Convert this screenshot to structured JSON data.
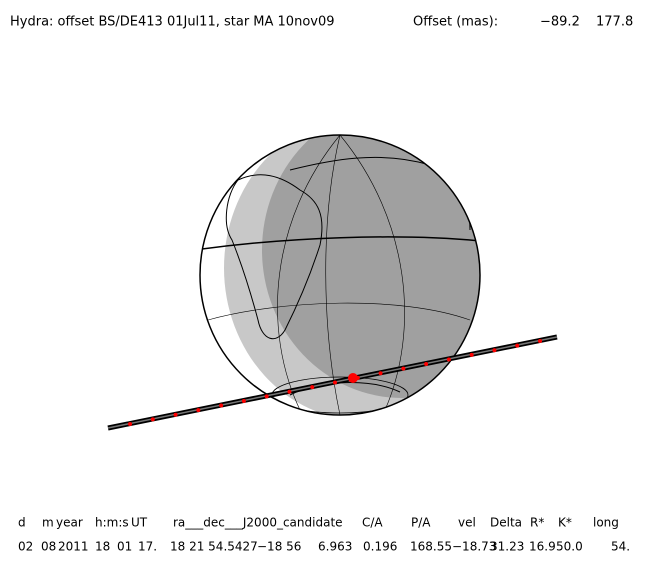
{
  "header": {
    "title": "Hydra: offset BS/DE413 01Jul11, star MA 10nov09",
    "offset_label": "Offset (mas):",
    "offset_values": [
      "−89.2",
      "177.8"
    ]
  },
  "table": {
    "columns": [
      "d",
      "m",
      "year",
      "h:m:s",
      "UT",
      "ra___dec___J2000_candidate",
      "C/A",
      "P/A",
      "vel",
      "Delta",
      "R*",
      "K*",
      "long"
    ],
    "row": [
      "02",
      "08",
      "2011",
      "18",
      "01",
      "17.",
      "18 21 54.5427",
      "−18 56",
      "6.963",
      "0.196",
      "168.55",
      "−18.73",
      "31.23",
      "16.9",
      "50.0",
      "54."
    ]
  }
}
